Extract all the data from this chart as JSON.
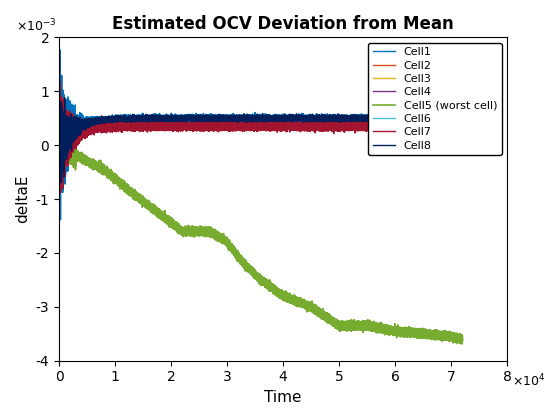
{
  "title": "Estimated OCV Deviation from Mean",
  "xlabel": "Time",
  "ylabel": "deltaE",
  "xlim": [
    0,
    80000
  ],
  "ylim": [
    -0.004,
    0.002
  ],
  "xticks": [
    0,
    10000,
    20000,
    30000,
    40000,
    50000,
    60000,
    70000,
    80000
  ],
  "xtick_labels": [
    "0",
    "1",
    "2",
    "3",
    "4",
    "5",
    "6",
    "7",
    "8"
  ],
  "yticks": [
    -0.004,
    -0.003,
    -0.002,
    -0.001,
    0,
    0.001,
    0.002
  ],
  "ytick_labels": [
    "-4",
    "-3",
    "-2",
    "-1",
    "0",
    "1",
    "2"
  ],
  "legend_labels": [
    "Cell1",
    "Cell2",
    "Cell3",
    "Cell4",
    "Cell5 (worst cell)",
    "Cell6",
    "Cell7",
    "Cell8"
  ],
  "cell_colors": [
    "#0072BD",
    "#D95319",
    "#EDB120",
    "#7E2F8E",
    "#77AC30",
    "#4DBEEE",
    "#A2142F",
    "#001F5B"
  ],
  "n_points": 72000,
  "seed": 42
}
